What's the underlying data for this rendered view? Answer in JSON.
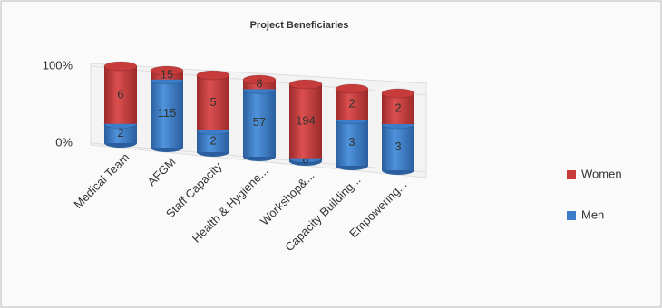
{
  "chart_data": {
    "type": "bar",
    "stacked": "percent",
    "title": "Project Beneficiaries",
    "categories": [
      "Medical Team",
      "AFGM",
      "Staff Capacity",
      "Health & Hygiene...",
      "Workshop&...",
      "Capacity Building...",
      "Empowering..."
    ],
    "series": [
      {
        "name": "Men",
        "color": "#3b7dc8",
        "values": [
          2,
          115,
          2,
          57,
          8,
          3,
          3
        ]
      },
      {
        "name": "Women",
        "color": "#c83b3b",
        "values": [
          6,
          15,
          5,
          8,
          194,
          2,
          2
        ]
      }
    ],
    "ylim": [
      0,
      100
    ],
    "yticks": [
      {
        "value": 0,
        "label": "0%"
      },
      {
        "value": 100,
        "label": "100%"
      }
    ],
    "grid": true,
    "legend": "right"
  }
}
